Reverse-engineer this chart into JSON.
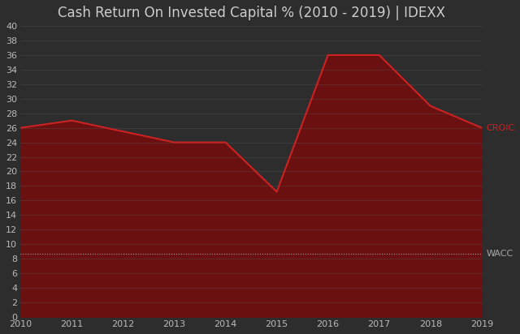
{
  "title": "Cash Return On Invested Capital % (2010 - 2019) | IDEXX",
  "years": [
    2010,
    2011,
    2012,
    2013,
    2014,
    2015,
    2016,
    2017,
    2018,
    2019
  ],
  "croic": [
    26.0,
    27.0,
    25.5,
    24.0,
    24.0,
    17.2,
    36.0,
    36.0,
    29.0,
    26.0
  ],
  "wacc": 8.7,
  "croic_color": "#cc2222",
  "wacc_color": "#aaaaaa",
  "fill_color": "#6b1010",
  "bg_color": "#2d2d2d",
  "plot_bg_color": "#2d2d2d",
  "grid_color": "#555555",
  "text_color": "#bbbbbb",
  "title_color": "#cccccc",
  "label_croic_color": "#cc2222",
  "label_wacc_color": "#aaaaaa",
  "ylim": [
    0,
    40
  ],
  "yticks": [
    0,
    2,
    4,
    6,
    8,
    10,
    12,
    14,
    16,
    18,
    20,
    22,
    24,
    26,
    28,
    30,
    32,
    34,
    36,
    38,
    40
  ],
  "title_fontsize": 12,
  "tick_fontsize": 8,
  "label_fontsize": 8,
  "line_width": 1.5
}
